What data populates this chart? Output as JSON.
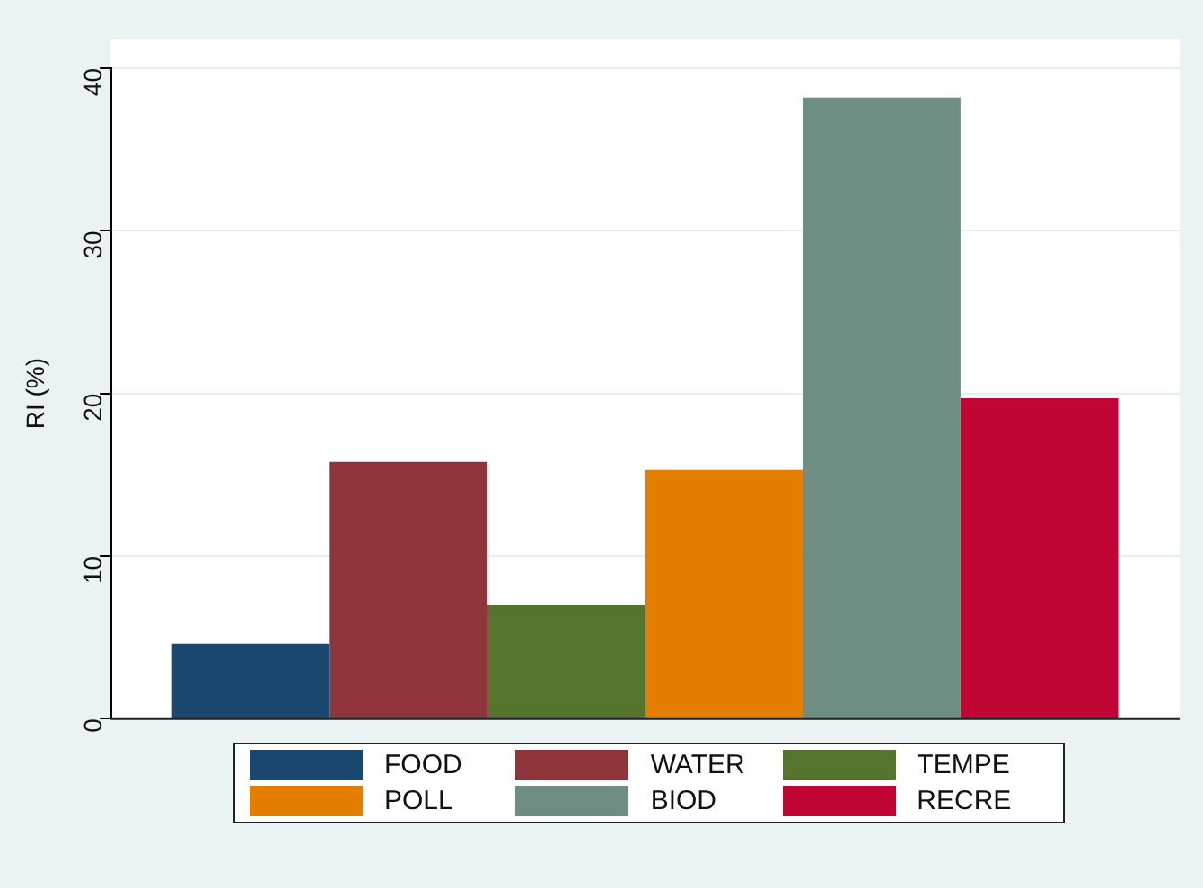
{
  "chart_data": {
    "type": "bar",
    "ylabel": "RI (%)",
    "categories": [
      null
    ],
    "series": [
      {
        "name": "FOOD",
        "color": "#1a476f",
        "values": [
          4.6
        ]
      },
      {
        "name": "WATER",
        "color": "#90353b",
        "values": [
          15.8
        ]
      },
      {
        "name": "TEMPE",
        "color": "#55752f",
        "values": [
          7.0
        ]
      },
      {
        "name": "POLL",
        "color": "#e37e00",
        "values": [
          15.3
        ]
      },
      {
        "name": "BIOD",
        "color": "#6e8e84",
        "values": [
          38.2
        ]
      },
      {
        "name": "RECRE",
        "color": "#c10534",
        "values": [
          19.7
        ]
      }
    ],
    "ylim": [
      0,
      40
    ],
    "yticks": [
      0,
      10,
      20,
      30,
      40
    ],
    "grid": "y",
    "legend": "bottom"
  }
}
